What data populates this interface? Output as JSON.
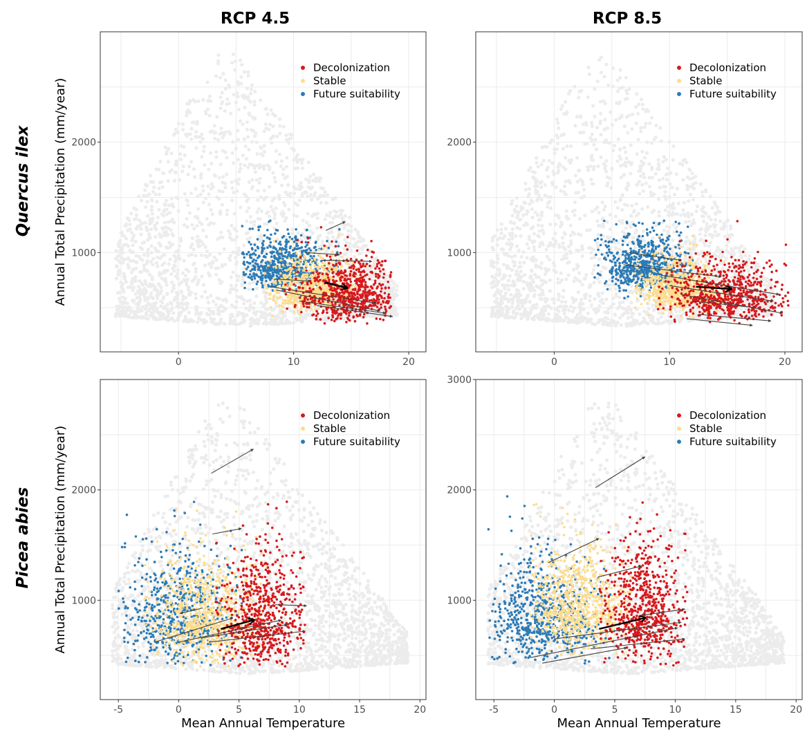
{
  "column_titles": [
    "RCP 4.5",
    "RCP 8.5"
  ],
  "row_titles": [
    "Quercus ilex",
    "Picea abies"
  ],
  "colors": {
    "background_points": "#ececec",
    "decolonization": "#d7191c",
    "stable": "#fddc8c",
    "future_suitability": "#2c7bb6",
    "arrow": "#404040",
    "mean_arrow": "#000000"
  },
  "chart_data": [
    {
      "type": "scatter",
      "species": "Quercus ilex",
      "scenario": "RCP 4.5",
      "xlabel": "",
      "ylabel": "Annual Total Precipitation (mm/year)",
      "xlim": [
        -6.8,
        21.5
      ],
      "ylim": [
        100,
        3000
      ],
      "x_ticks": [
        0,
        10,
        20
      ],
      "x_tick_labels": [
        "0",
        "10",
        "20"
      ],
      "y_ticks": [
        1000,
        2000
      ],
      "y_tick_labels": [
        "1000",
        "2000"
      ],
      "grid": true,
      "legend_position": "top-right",
      "legend": [
        "Decolonization",
        "Stable",
        "Future suitability"
      ],
      "clusters": {
        "future_suitability": {
          "x": [
            5.5,
            14
          ],
          "y": [
            400,
            1300
          ],
          "center": [
            9,
            850
          ]
        },
        "stable": {
          "x": [
            7.5,
            15.5
          ],
          "y": [
            400,
            1200
          ],
          "center": [
            11.5,
            650
          ]
        },
        "decolonization": {
          "x": [
            9,
            18.5
          ],
          "y": [
            350,
            1350
          ],
          "center": [
            15,
            600
          ]
        }
      },
      "mean_arrow": {
        "from": [
          12.7,
          730
        ],
        "to": [
          14.6,
          680
        ]
      },
      "arrows": [
        {
          "from": [
            12.8,
            1200
          ],
          "to": [
            14.5,
            1280
          ]
        },
        {
          "from": [
            11.0,
            1000
          ],
          "to": [
            14.0,
            980
          ]
        },
        {
          "from": [
            12.5,
            930
          ],
          "to": [
            16.8,
            920
          ]
        },
        {
          "from": [
            8.5,
            760
          ],
          "to": [
            11.5,
            740
          ]
        },
        {
          "from": [
            8.0,
            690
          ],
          "to": [
            17.2,
            540
          ]
        },
        {
          "from": [
            8.5,
            660
          ],
          "to": [
            17.5,
            470
          ]
        },
        {
          "from": [
            10.5,
            560
          ],
          "to": [
            18.0,
            450
          ]
        },
        {
          "from": [
            12.0,
            520
          ],
          "to": [
            18.6,
            420
          ]
        }
      ]
    },
    {
      "type": "scatter",
      "species": "Quercus ilex",
      "scenario": "RCP 8.5",
      "xlabel": "",
      "ylabel": "",
      "xlim": [
        -6.8,
        21.5
      ],
      "ylim": [
        100,
        3000
      ],
      "x_ticks": [
        0,
        10,
        20
      ],
      "x_tick_labels": [
        "0",
        "10",
        "20"
      ],
      "y_ticks": [
        1000,
        2000
      ],
      "y_tick_labels": [
        "1000",
        "2000"
      ],
      "grid": true,
      "legend_position": "top-right",
      "legend": [
        "Decolonization",
        "Stable",
        "Future suitability"
      ],
      "clusters": {
        "future_suitability": {
          "x": [
            3.5,
            12
          ],
          "y": [
            400,
            1300
          ],
          "center": [
            8,
            850
          ]
        },
        "stable": {
          "x": [
            7,
            15
          ],
          "y": [
            400,
            1200
          ],
          "center": [
            11,
            650
          ]
        },
        "decolonization": {
          "x": [
            9,
            20.5
          ],
          "y": [
            350,
            1350
          ],
          "center": [
            15,
            600
          ]
        }
      },
      "mean_arrow": {
        "from": [
          12.3,
          690
        ],
        "to": [
          15.3,
          670
        ]
      },
      "arrows": [
        {
          "from": [
            6.5,
            1000
          ],
          "to": [
            11.0,
            930
          ]
        },
        {
          "from": [
            6.0,
            890
          ],
          "to": [
            14.5,
            780
          ]
        },
        {
          "from": [
            9.0,
            800
          ],
          "to": [
            19.5,
            620
          ]
        },
        {
          "from": [
            10.0,
            700
          ],
          "to": [
            19.0,
            560
          ]
        },
        {
          "from": [
            11.0,
            620
          ],
          "to": [
            19.8,
            450
          ]
        },
        {
          "from": [
            12.0,
            560
          ],
          "to": [
            17.5,
            500
          ]
        },
        {
          "from": [
            12.5,
            440
          ],
          "to": [
            18.8,
            380
          ]
        },
        {
          "from": [
            11.5,
            400
          ],
          "to": [
            17.2,
            340
          ]
        }
      ]
    },
    {
      "type": "scatter",
      "species": "Picea abies",
      "scenario": "RCP 4.5",
      "xlabel": "Mean Annual Temperature",
      "ylabel": "Annual Total Precipitation (mm/year)",
      "xlim": [
        -6.5,
        20.5
      ],
      "ylim": [
        100,
        3000
      ],
      "x_ticks": [
        -5,
        0,
        5,
        10,
        15,
        20
      ],
      "x_tick_labels": [
        "-5",
        "0",
        "5",
        "10",
        "15",
        "20"
      ],
      "y_ticks": [
        1000,
        2000
      ],
      "y_tick_labels": [
        "1000",
        "2000"
      ],
      "grid": true,
      "legend_position": "top-right",
      "legend": [
        "Decolonization",
        "Stable",
        "Future suitability"
      ],
      "clusters": {
        "future_suitability": {
          "x": [
            -5,
            5.5
          ],
          "y": [
            400,
            2200
          ],
          "center": [
            0,
            800
          ]
        },
        "stable": {
          "x": [
            -3,
            7.5
          ],
          "y": [
            400,
            2100
          ],
          "center": [
            2,
            800
          ]
        },
        "decolonization": {
          "x": [
            3,
            10.5
          ],
          "y": [
            400,
            2350
          ],
          "center": [
            7,
            800
          ]
        }
      },
      "mean_arrow": {
        "from": [
          3.5,
          740
        ],
        "to": [
          6.2,
          820
        ]
      },
      "arrows": [
        {
          "from": [
            2.7,
            2150
          ],
          "to": [
            6.2,
            2370
          ]
        },
        {
          "from": [
            2.8,
            1600
          ],
          "to": [
            5.2,
            1650
          ]
        },
        {
          "from": [
            8.0,
            960
          ],
          "to": [
            10.6,
            950
          ]
        },
        {
          "from": [
            2.0,
            930
          ],
          "to": [
            0.1,
            880
          ]
        },
        {
          "from": [
            0.0,
            620
          ],
          "to": [
            8.5,
            820
          ]
        },
        {
          "from": [
            -2.0,
            620
          ],
          "to": [
            4.5,
            840
          ]
        },
        {
          "from": [
            2.0,
            660
          ],
          "to": [
            9.0,
            780
          ]
        },
        {
          "from": [
            2.5,
            620
          ],
          "to": [
            10.5,
            720
          ]
        }
      ]
    },
    {
      "type": "scatter",
      "species": "Picea abies",
      "scenario": "RCP 8.5",
      "xlabel": "Mean Annual Temperature",
      "ylabel": "",
      "xlim": [
        -6.5,
        20.5
      ],
      "ylim": [
        100,
        3000
      ],
      "x_ticks": [
        -5,
        0,
        5,
        10,
        15,
        20
      ],
      "x_tick_labels": [
        "-5",
        "0",
        "5",
        "10",
        "15",
        "20"
      ],
      "y_ticks": [
        1000,
        2000,
        3000
      ],
      "y_tick_labels": [
        "1000",
        "2000",
        "3000"
      ],
      "grid": true,
      "legend_position": "top-right",
      "legend": [
        "Decolonization",
        "Stable",
        "Future suitability"
      ],
      "clusters": {
        "future_suitability": {
          "x": [
            -5.5,
            5
          ],
          "y": [
            400,
            2100
          ],
          "center": [
            -1,
            800
          ]
        },
        "stable": {
          "x": [
            -2,
            6.5
          ],
          "y": [
            400,
            2000
          ],
          "center": [
            2,
            900
          ]
        },
        "decolonization": {
          "x": [
            3.5,
            11
          ],
          "y": [
            400,
            2350
          ],
          "center": [
            7.5,
            850
          ]
        }
      },
      "mean_arrow": {
        "from": [
          3.7,
          740
        ],
        "to": [
          7.5,
          840
        ]
      },
      "arrows": [
        {
          "from": [
            3.4,
            2020
          ],
          "to": [
            7.5,
            2300
          ]
        },
        {
          "from": [
            -0.5,
            1340
          ],
          "to": [
            3.7,
            1560
          ]
        },
        {
          "from": [
            3.6,
            1210
          ],
          "to": [
            7.2,
            1310
          ]
        },
        {
          "from": [
            7.0,
            860
          ],
          "to": [
            10.8,
            920
          ]
        },
        {
          "from": [
            0.0,
            650
          ],
          "to": [
            10.5,
            800
          ]
        },
        {
          "from": [
            -2.0,
            480
          ],
          "to": [
            10.2,
            750
          ]
        },
        {
          "from": [
            -1.0,
            430
          ],
          "to": [
            6.0,
            570
          ]
        },
        {
          "from": [
            3.0,
            560
          ],
          "to": [
            10.8,
            650
          ]
        }
      ]
    }
  ]
}
